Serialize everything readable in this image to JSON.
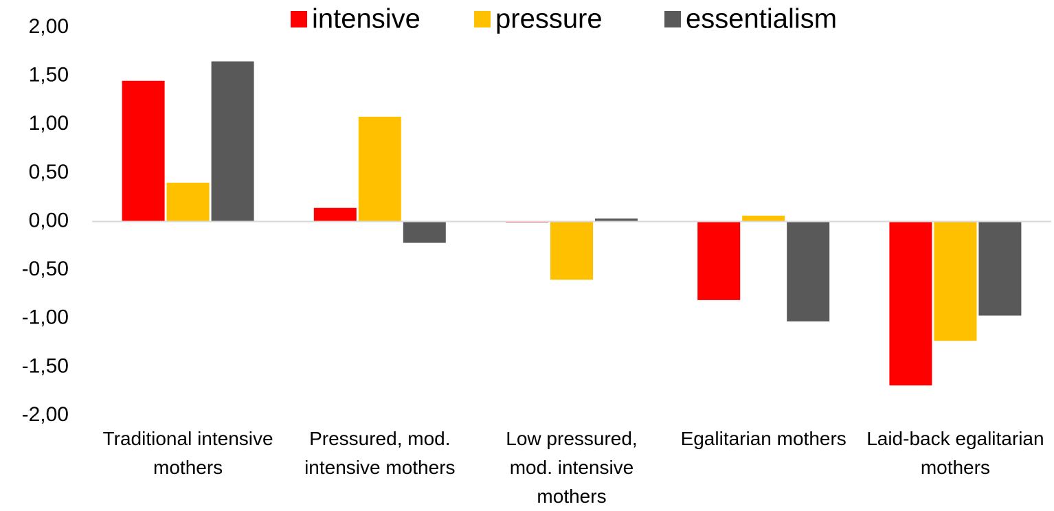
{
  "chart_data": {
    "type": "bar",
    "categories": [
      "Traditional intensive mothers",
      "Pressured, mod. intensive mothers",
      "Low pressured, mod. intensive mothers",
      "Egalitarian mothers",
      "Laid-back egalitarian mothers"
    ],
    "series": [
      {
        "name": "intensive",
        "color": "#ff0000",
        "values": [
          1.45,
          0.14,
          -0.01,
          -0.81,
          -1.69
        ]
      },
      {
        "name": "pressure",
        "color": "#ffc000",
        "values": [
          0.4,
          1.08,
          -0.6,
          0.06,
          -1.23
        ]
      },
      {
        "name": "essentialism",
        "color": "#595959",
        "values": [
          1.65,
          -0.22,
          0.03,
          -1.03,
          -0.97
        ]
      }
    ],
    "ylim": [
      -2,
      2
    ],
    "yticks": [
      {
        "value": 2,
        "label": "2,00"
      },
      {
        "value": 1.5,
        "label": "1,50"
      },
      {
        "value": 1,
        "label": "1,00"
      },
      {
        "value": 0.5,
        "label": "0,50"
      },
      {
        "value": 0,
        "label": "0,00"
      },
      {
        "value": -0.5,
        "label": "-0,50"
      },
      {
        "value": -1,
        "label": "-1,00"
      },
      {
        "value": -1.5,
        "label": "-1,50"
      },
      {
        "value": -2,
        "label": "-2,00"
      }
    ],
    "grid": false,
    "legend": "top"
  }
}
